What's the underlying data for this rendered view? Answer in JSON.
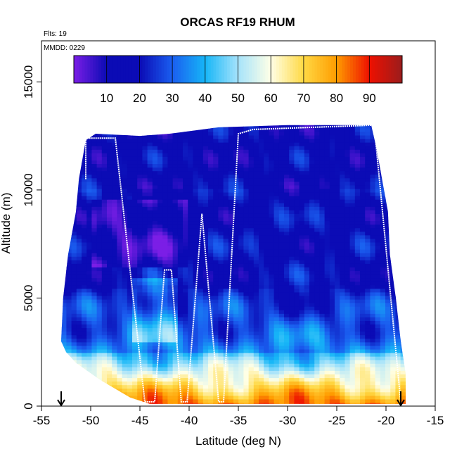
{
  "chart_data": {
    "type": "heatmap",
    "title": "ORCAS RF19 RHUM",
    "annotations": [
      "Flts: 19",
      "MMDD: 0229"
    ],
    "xlabel": "Latitude (deg N)",
    "ylabel": "Altitude (m)",
    "xlim": [
      -55,
      -15
    ],
    "ylim": [
      0,
      16900
    ],
    "x_ticks": [
      -55,
      -50,
      -45,
      -40,
      -35,
      -30,
      -25,
      -20,
      -15
    ],
    "x_tick_labels": [
      "-55",
      "-50",
      "-45",
      "-40",
      "-35",
      "-30",
      "-25",
      "-20",
      "-15"
    ],
    "y_ticks": [
      0,
      5000,
      10000,
      15000
    ],
    "y_tick_labels": [
      "0",
      "5000",
      "10000",
      "15000"
    ],
    "grid": false,
    "colorbar": {
      "range": [
        0,
        100
      ],
      "tick_values": [
        10,
        20,
        30,
        40,
        50,
        60,
        70,
        80,
        90
      ],
      "tick_labels": [
        "10",
        "20",
        "30",
        "40",
        "50",
        "60",
        "70",
        "80",
        "90"
      ],
      "colors": [
        "#7b1ee6",
        "#0b0bb5",
        "#0b0bb5",
        "#1a5ef0",
        "#16b6f7",
        "#a6e3fb",
        "#ffffe6",
        "#ffd944",
        "#ff9c00",
        "#ee1100",
        "#9b1c1c"
      ],
      "position": "top"
    },
    "markers": [
      {
        "symbol": "down-arrow",
        "x": -53
      },
      {
        "symbol": "down-arrow",
        "x": -18.5
      }
    ],
    "colored_domain_outline": [
      [
        -52.5,
        2500
      ],
      [
        -53.0,
        3000
      ],
      [
        -52.8,
        5000
      ],
      [
        -52.3,
        7000
      ],
      [
        -51.5,
        9000
      ],
      [
        -51.2,
        10500
      ],
      [
        -50.5,
        12300
      ],
      [
        -49.5,
        12600
      ],
      [
        -45,
        12500
      ],
      [
        -42,
        12600
      ],
      [
        -37,
        12900
      ],
      [
        -30,
        13000
      ],
      [
        -21.5,
        13000
      ],
      [
        -21,
        12000
      ],
      [
        -19.8,
        9000
      ],
      [
        -19.6,
        7000
      ],
      [
        -19.0,
        5000
      ],
      [
        -18.8,
        4200
      ],
      [
        -18.5,
        3000
      ],
      [
        -18.0,
        1500
      ],
      [
        -18.0,
        100
      ],
      [
        -44,
        100
      ],
      [
        -46,
        400
      ],
      [
        -49,
        1200
      ],
      [
        -51.5,
        2000
      ]
    ],
    "field_description": "relative humidity (%) along flight track",
    "series": [
      {
        "values_approx": {
          "humid_boundary_layer_altitude_m": [
            0,
            2500
          ],
          "max_near_surface_rhum": 85,
          "upper_troposphere_rhum": 15
        }
      }
    ],
    "flight_track": [
      [
        -50.5,
        10500
      ],
      [
        -50.5,
        12400
      ],
      [
        -47.5,
        12400
      ],
      [
        -44.5,
        200
      ],
      [
        -43.5,
        200
      ],
      [
        -42.5,
        6300
      ],
      [
        -41.8,
        6300
      ],
      [
        -40.8,
        200
      ],
      [
        -40.2,
        200
      ],
      [
        -38.7,
        8900
      ],
      [
        -37,
        200
      ],
      [
        -36.5,
        200
      ],
      [
        -35,
        12600
      ],
      [
        -33.5,
        12800
      ],
      [
        -21.2,
        13000
      ],
      [
        -18.5,
        200
      ]
    ]
  }
}
